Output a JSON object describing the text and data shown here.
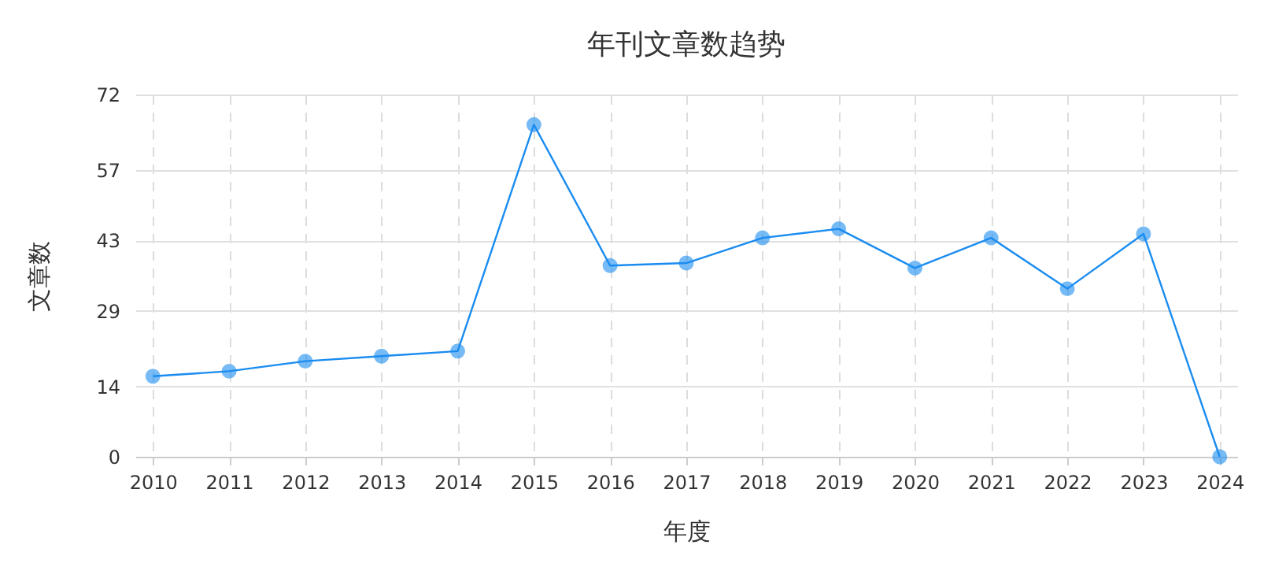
{
  "chart_data": {
    "type": "line",
    "title": "年刊文章数趋势",
    "xlabel": "年度",
    "ylabel": "文章数",
    "categories": [
      "2010",
      "2011",
      "2012",
      "2013",
      "2014",
      "2015",
      "2016",
      "2017",
      "2018",
      "2019",
      "2020",
      "2021",
      "2022",
      "2023",
      "2024"
    ],
    "series": [
      {
        "color": "#1a8cf0",
        "values": [
          16,
          17,
          19,
          20,
          21,
          66,
          38,
          38.5,
          43.5,
          45.3,
          37.5,
          43.5,
          33.4,
          44.3,
          0
        ]
      }
    ],
    "ylim": [
      0,
      72
    ],
    "yticks": [
      0,
      14,
      29,
      43,
      57,
      72
    ],
    "grid": true,
    "marker": "circle",
    "line_style": "solid"
  }
}
